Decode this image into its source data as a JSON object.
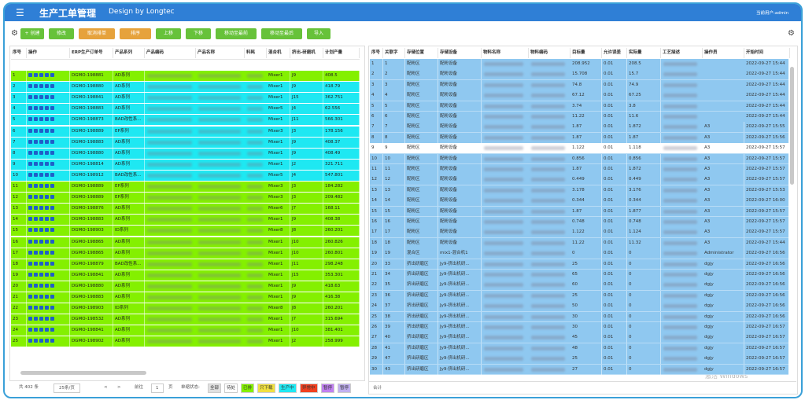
{
  "header": {
    "title": "生产工单管理",
    "subtitle": "Design by Longtec",
    "user": "当前用户:admin"
  },
  "toolbar": [
    {
      "label": "+ 创建",
      "color": "#67c23a"
    },
    {
      "label": "修改",
      "color": "#67c23a"
    },
    {
      "label": "取消排单",
      "color": "#e6a23c"
    },
    {
      "label": "排序",
      "color": "#e6a23c"
    },
    {
      "label": "上移",
      "color": "#67c23a"
    },
    {
      "label": "下移",
      "color": "#67c23a"
    },
    {
      "label": "移动至最前",
      "color": "#67c23a"
    },
    {
      "label": "移动至最后",
      "color": "#67c23a"
    },
    {
      "label": "导入",
      "color": "#67c23a"
    }
  ],
  "left_table": {
    "columns": [
      "序号",
      "操作",
      "ERP生产订单号",
      "产品系列",
      "产品编码",
      "产品名称",
      "料耗",
      "混合机",
      "挤出-研磨机",
      "计划产量"
    ],
    "rows": [
      {
        "no": "1",
        "erp": "DGMO-198881",
        "series": "AD系列",
        "mixer": "Mixer1",
        "line": "J9",
        "qty": "408.5",
        "color": "#84f000"
      },
      {
        "no": "2",
        "erp": "DGMO-198880",
        "series": "AD系列",
        "mixer": "Mixer1",
        "line": "J9",
        "qty": "418.79",
        "color": "#1ee8f2"
      },
      {
        "no": "3",
        "erp": "DGMO-198841",
        "series": "AD系列",
        "mixer": "Mixer1",
        "line": "J15",
        "qty": "362.751",
        "color": "#1ee8f2"
      },
      {
        "no": "4",
        "erp": "DGMO-198883",
        "series": "AD系列",
        "mixer": "Mixer5",
        "line": "J4",
        "qty": "62.556",
        "color": "#1ee8f2"
      },
      {
        "no": "5",
        "erp": "DGMO-198873",
        "series": "BAD改性系...",
        "mixer": "Mixer1",
        "line": "J11",
        "qty": "566.301",
        "color": "#1ee8f2"
      },
      {
        "no": "6",
        "erp": "DGMO-198889",
        "series": "EP系列",
        "mixer": "Mixer3",
        "line": "J3",
        "qty": "178.156",
        "color": "#1ee8f2"
      },
      {
        "no": "7",
        "erp": "DGMO-198883",
        "series": "AD系列",
        "mixer": "Mixer1",
        "line": "J9",
        "qty": "408.37",
        "color": "#1ee8f2"
      },
      {
        "no": "8",
        "erp": "DGMO-198880",
        "series": "AD系列",
        "mixer": "Mixer1",
        "line": "J9",
        "qty": "408.49",
        "color": "#1ee8f2"
      },
      {
        "no": "9",
        "erp": "DGMO-198814",
        "series": "AD系列",
        "mixer": "Mixer1",
        "line": "J2",
        "qty": "321.711",
        "color": "#1ee8f2"
      },
      {
        "no": "10",
        "erp": "DGMO-198912",
        "series": "BAD改性系...",
        "mixer": "Mixer5",
        "line": "J4",
        "qty": "547.801",
        "color": "#1ee8f2"
      },
      {
        "no": "11",
        "erp": "DGMO-198889",
        "series": "EP系列",
        "mixer": "Mixer3",
        "line": "J3",
        "qty": "184.282",
        "color": "#84f000"
      },
      {
        "no": "12",
        "erp": "DGMO-198889",
        "series": "EP系列",
        "mixer": "Mixer3",
        "line": "J3",
        "qty": "209.482",
        "color": "#84f000"
      },
      {
        "no": "13",
        "erp": "DGMO-198876",
        "series": "AD系列",
        "mixer": "Mixer6",
        "line": "J7",
        "qty": "168.11",
        "color": "#84f000"
      },
      {
        "no": "14",
        "erp": "DGMO-198883",
        "series": "AD系列",
        "mixer": "Mixer1",
        "line": "J9",
        "qty": "408.38",
        "color": "#84f000"
      },
      {
        "no": "15",
        "erp": "DGMO-198903",
        "series": "ID系列",
        "mixer": "Mixer8",
        "line": "J8",
        "qty": "260.201",
        "color": "#84f000"
      },
      {
        "no": "16",
        "erp": "DGMO-198865",
        "series": "AD系列",
        "mixer": "Mixer1",
        "line": "J10",
        "qty": "260.826",
        "color": "#84f000"
      },
      {
        "no": "17",
        "erp": "DGMO-198865",
        "series": "AD系列",
        "mixer": "Mixer1",
        "line": "J10",
        "qty": "260.801",
        "color": "#84f000"
      },
      {
        "no": "18",
        "erp": "DGMO-198879",
        "series": "BAD改性系...",
        "mixer": "Mixer1",
        "line": "J11",
        "qty": "298.248",
        "color": "#84f000"
      },
      {
        "no": "19",
        "erp": "DGMO-198841",
        "series": "AD系列",
        "mixer": "Mixer1",
        "line": "J15",
        "qty": "353.301",
        "color": "#84f000"
      },
      {
        "no": "20",
        "erp": "DGMO-198880",
        "series": "AD系列",
        "mixer": "Mixer1",
        "line": "J9",
        "qty": "418.63",
        "color": "#84f000"
      },
      {
        "no": "21",
        "erp": "DGMO-198883",
        "series": "AD系列",
        "mixer": "Mixer1",
        "line": "J9",
        "qty": "416.38",
        "color": "#84f000"
      },
      {
        "no": "22",
        "erp": "DGMO-198903",
        "series": "ID系列",
        "mixer": "Mixer8",
        "line": "J8",
        "qty": "260.201",
        "color": "#84f000"
      },
      {
        "no": "23",
        "erp": "DGMO-198532",
        "series": "AD系列",
        "mixer": "Mixer1",
        "line": "J7",
        "qty": "315.694",
        "color": "#84f000"
      },
      {
        "no": "24",
        "erp": "DGMO-198841",
        "series": "AD系列",
        "mixer": "Mixer1",
        "line": "J10",
        "qty": "381.401",
        "color": "#84f000"
      },
      {
        "no": "25",
        "erp": "DGMO-198902",
        "series": "AD系列",
        "mixer": "Mixer1",
        "line": "J2",
        "qty": "258.999",
        "color": "#84f000"
      }
    ]
  },
  "left_footer": {
    "total": "共 402 条",
    "page_size": "25条/页",
    "prev": "<",
    "next": ">",
    "goto": "前往",
    "page": "1",
    "page_unit": "页",
    "status_label": "单缩状态:",
    "chips": [
      {
        "label": "全部",
        "color": "#e0e0e0"
      },
      {
        "label": "待处",
        "color": "#ffffff"
      },
      {
        "label": "已排",
        "color": "#84f000"
      },
      {
        "label": "只下载",
        "color": "#f0e040"
      },
      {
        "label": "生产中",
        "color": "#1ee8f2"
      },
      {
        "label": "异常中",
        "color": "#f04020"
      },
      {
        "label": "暂停",
        "color": "#c080f0"
      },
      {
        "label": "暂停",
        "color": "#c0b0f0"
      }
    ]
  },
  "right_table": {
    "columns": [
      "序号",
      "关联字",
      "存储位置",
      "存储设备",
      "物料名称",
      "物料编码",
      "目标量",
      "允许误差",
      "实际量",
      "工艺描述",
      "操作员",
      "开始时间"
    ],
    "rows": [
      {
        "no": "1",
        "id": "1",
        "loc": "配粉区",
        "dev": "配粉设备",
        "target": "208.952",
        "tol": "0.01",
        "actual": "208.5",
        "op": "",
        "time": "2022-09-27 15:44"
      },
      {
        "no": "2",
        "id": "2",
        "loc": "配粉区",
        "dev": "配粉设备",
        "target": "15.708",
        "tol": "0.01",
        "actual": "15.7",
        "op": "",
        "time": "2022-09-27 15:44"
      },
      {
        "no": "3",
        "id": "3",
        "loc": "配粉区",
        "dev": "配粉设备",
        "target": "74.8",
        "tol": "0.01",
        "actual": "74.9",
        "op": "",
        "time": "2022-09-27 15:44"
      },
      {
        "no": "4",
        "id": "4",
        "loc": "配粉区",
        "dev": "配粉设备",
        "target": "67.12",
        "tol": "0.01",
        "actual": "67.25",
        "op": "",
        "time": "2022-09-27 15:44"
      },
      {
        "no": "5",
        "id": "5",
        "loc": "配粉区",
        "dev": "配粉设备",
        "target": "3.74",
        "tol": "0.01",
        "actual": "3.8",
        "op": "",
        "time": "2022-09-27 15:44"
      },
      {
        "no": "6",
        "id": "6",
        "loc": "配粉区",
        "dev": "配粉设备",
        "target": "11.22",
        "tol": "0.01",
        "actual": "11.6",
        "op": "",
        "time": "2022-09-27 15:44"
      },
      {
        "no": "7",
        "id": "7",
        "loc": "配粉区",
        "dev": "配粉设备",
        "target": "1.87",
        "tol": "0.01",
        "actual": "1.872",
        "op": "A3",
        "time": "2022-09-27 15:55"
      },
      {
        "no": "8",
        "id": "8",
        "loc": "配粉区",
        "dev": "配粉设备",
        "target": "1.87",
        "tol": "0.01",
        "actual": "1.87",
        "op": "A3",
        "time": "2022-09-27 15:56"
      },
      {
        "no": "9",
        "id": "9",
        "loc": "配粉区",
        "dev": "配粉设备",
        "target": "1.122",
        "tol": "0.01",
        "actual": "1.118",
        "op": "A3",
        "time": "2022-09-27 15:57",
        "selected": true
      },
      {
        "no": "10",
        "id": "10",
        "loc": "配粉区",
        "dev": "配粉设备",
        "target": "0.856",
        "tol": "0.01",
        "actual": "0.856",
        "op": "A3",
        "time": "2022-09-27 15:57"
      },
      {
        "no": "11",
        "id": "11",
        "loc": "配粉区",
        "dev": "配粉设备",
        "target": "1.87",
        "tol": "0.01",
        "actual": "1.872",
        "op": "A3",
        "time": "2022-09-27 15:57"
      },
      {
        "no": "12",
        "id": "12",
        "loc": "配粉区",
        "dev": "配粉设备",
        "target": "0.449",
        "tol": "0.01",
        "actual": "0.449",
        "op": "A3",
        "time": "2022-09-27 15:57"
      },
      {
        "no": "13",
        "id": "13",
        "loc": "配粉区",
        "dev": "配粉设备",
        "target": "3.178",
        "tol": "0.01",
        "actual": "3.176",
        "op": "A3",
        "time": "2022-09-27 15:53"
      },
      {
        "no": "14",
        "id": "14",
        "loc": "配粉区",
        "dev": "配粉设备",
        "target": "0.344",
        "tol": "0.01",
        "actual": "0.344",
        "op": "A3",
        "time": "2022-09-27 16:00"
      },
      {
        "no": "15",
        "id": "15",
        "loc": "配粉区",
        "dev": "配粉设备",
        "target": "1.87",
        "tol": "0.01",
        "actual": "1.877",
        "op": "A3",
        "time": "2022-09-27 15:57"
      },
      {
        "no": "16",
        "id": "16",
        "loc": "配粉区",
        "dev": "配粉设备",
        "target": "0.748",
        "tol": "0.01",
        "actual": "0.748",
        "op": "A3",
        "time": "2022-09-27 15:57"
      },
      {
        "no": "17",
        "id": "17",
        "loc": "配粉区",
        "dev": "配粉设备",
        "target": "1.122",
        "tol": "0.01",
        "actual": "1.124",
        "op": "A3",
        "time": "2022-09-27 15:57"
      },
      {
        "no": "18",
        "id": "18",
        "loc": "配粉区",
        "dev": "配粉设备",
        "target": "11.22",
        "tol": "0.01",
        "actual": "11.32",
        "op": "A3",
        "time": "2022-09-27 15:44"
      },
      {
        "no": "19",
        "id": "19",
        "loc": "混合区",
        "dev": "mix1-混合机1",
        "target": "0",
        "tol": "0.01",
        "actual": "0",
        "op": "Administrator",
        "time": "2022-09-27 16:56"
      },
      {
        "no": "20",
        "id": "33",
        "loc": "挤出研磨区",
        "dev": "Jy9-挤出机研...",
        "target": "25",
        "tol": "0.01",
        "actual": "0",
        "op": "dgjy",
        "time": "2022-09-27 16:56"
      },
      {
        "no": "21",
        "id": "34",
        "loc": "挤出研磨区",
        "dev": "Jy9-挤出机研...",
        "target": "65",
        "tol": "0.01",
        "actual": "0",
        "op": "dgjy",
        "time": "2022-09-27 16:56"
      },
      {
        "no": "22",
        "id": "35",
        "loc": "挤出研磨区",
        "dev": "Jy9-挤出机研...",
        "target": "60",
        "tol": "0.01",
        "actual": "0",
        "op": "dgjy",
        "time": "2022-09-27 16:56"
      },
      {
        "no": "23",
        "id": "36",
        "loc": "挤出研磨区",
        "dev": "Jy9-挤出机研...",
        "target": "25",
        "tol": "0.01",
        "actual": "0",
        "op": "dgjy",
        "time": "2022-09-27 16:56"
      },
      {
        "no": "24",
        "id": "37",
        "loc": "挤出研磨区",
        "dev": "Jy9-挤出机研...",
        "target": "50",
        "tol": "0.01",
        "actual": "0",
        "op": "dgjy",
        "time": "2022-09-27 16:56"
      },
      {
        "no": "25",
        "id": "38",
        "loc": "挤出研磨区",
        "dev": "Jy9-挤出机研...",
        "target": "30",
        "tol": "0.01",
        "actual": "0",
        "op": "dgjy",
        "time": "2022-09-27 16:56"
      },
      {
        "no": "26",
        "id": "39",
        "loc": "挤出研磨区",
        "dev": "Jy9-挤出机研...",
        "target": "30",
        "tol": "0.01",
        "actual": "0",
        "op": "dgjy",
        "time": "2022-09-27 16:57"
      },
      {
        "no": "27",
        "id": "40",
        "loc": "挤出研磨区",
        "dev": "Jy9-挤出机研...",
        "target": "45",
        "tol": "0.01",
        "actual": "0",
        "op": "dgjy",
        "time": "2022-09-27 16:57"
      },
      {
        "no": "28",
        "id": "41",
        "loc": "挤出研磨区",
        "dev": "Jy9-挤出机研...",
        "target": "48",
        "tol": "0.01",
        "actual": "0",
        "op": "dgjy",
        "time": "2022-09-27 16:57"
      },
      {
        "no": "29",
        "id": "47",
        "loc": "挤出研磨区",
        "dev": "Jy9-挤出机研...",
        "target": "25",
        "tol": "0.01",
        "actual": "0",
        "op": "dgjy",
        "time": "2022-09-27 16:57"
      },
      {
        "no": "30",
        "id": "43",
        "loc": "挤出研磨区",
        "dev": "Jy9-挤出机研...",
        "target": "27",
        "tol": "0.01",
        "actual": "0",
        "op": "dgjy",
        "time": "2022-09-27 16:57"
      }
    ]
  },
  "right_footer": {
    "sum": "合计"
  },
  "watermark": "激活 Windows"
}
